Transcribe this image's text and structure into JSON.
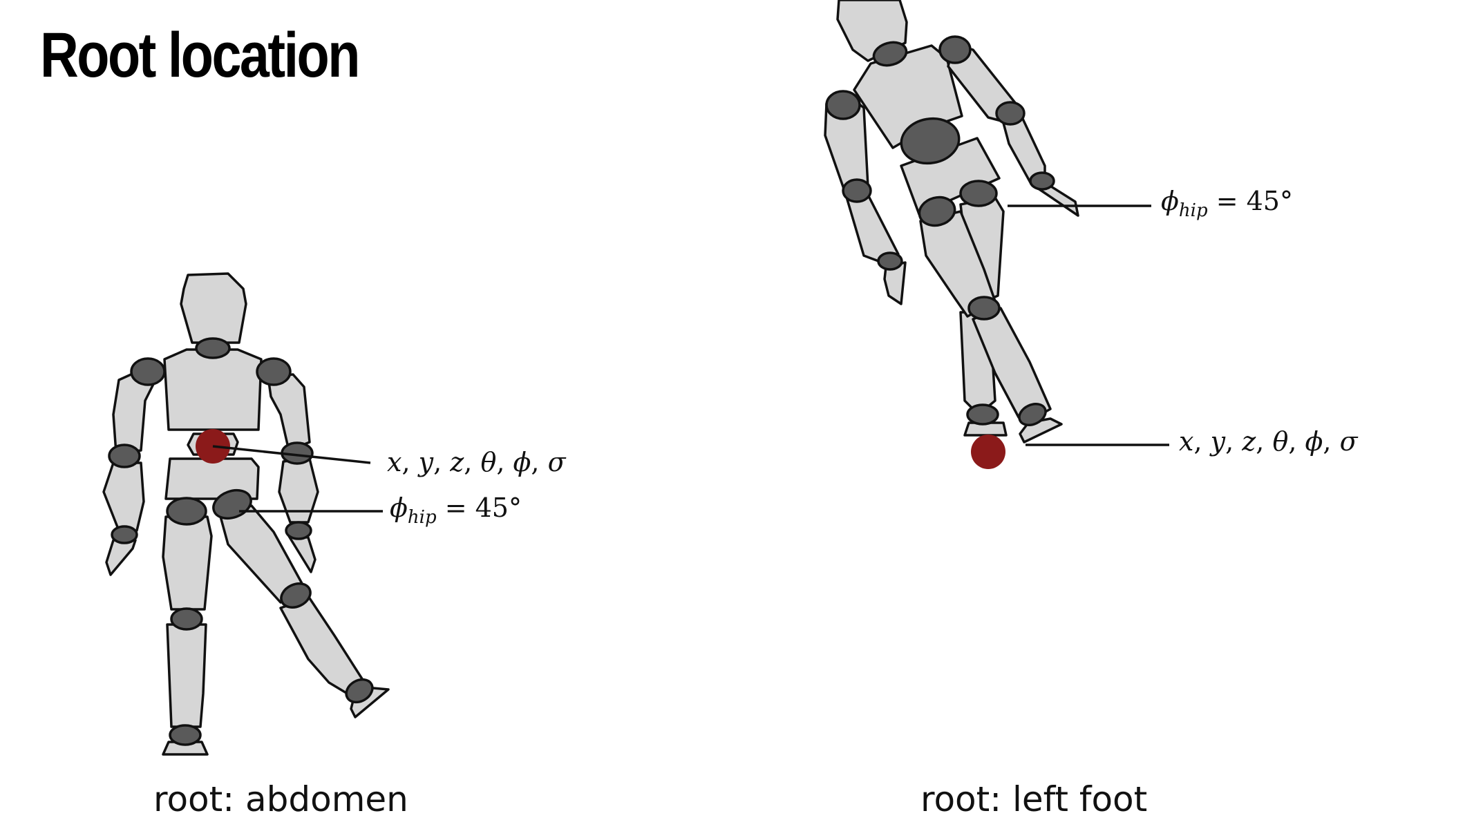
{
  "title": "Root location",
  "left": {
    "caption": "root: abdomen",
    "root_label": {
      "x": "x",
      "y": "y",
      "z": "z",
      "theta": "θ",
      "phi": "ϕ",
      "sigma": "σ"
    },
    "hip_label": {
      "phi": "ϕ",
      "sub": "hip",
      "eq": " = ",
      "value": "45°"
    }
  },
  "right": {
    "caption": "root: left foot",
    "root_label": {
      "x": "x",
      "y": "y",
      "z": "z",
      "theta": "θ",
      "phi": "ϕ",
      "sigma": "σ"
    },
    "hip_label": {
      "phi": "ϕ",
      "sub": "hip",
      "eq": " = ",
      "value": "45°"
    }
  },
  "colors": {
    "segment": "#d6d6d6",
    "joint": "#5a5a5a",
    "root": "#8b1a1a",
    "outline": "#111111"
  }
}
